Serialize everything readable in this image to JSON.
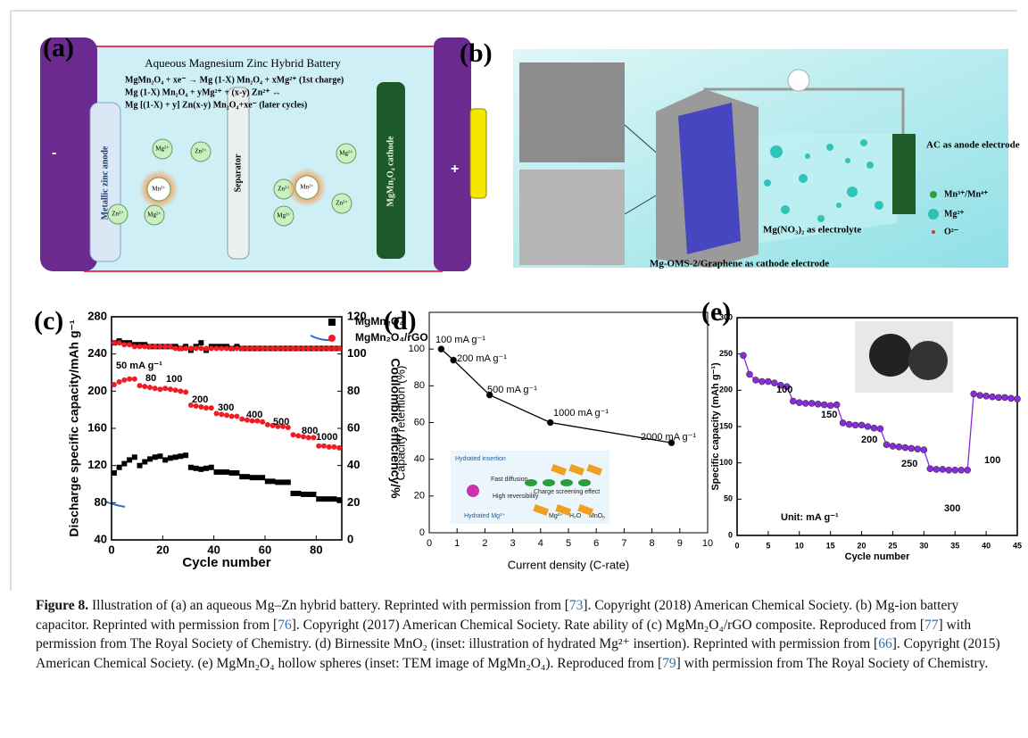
{
  "figure": {
    "panel_a": {
      "label": "(a)",
      "title": "Aqueous Magnesium Zinc Hybrid Battery",
      "equations": [
        "MgMn₂O₄ + xe⁻ → Mg (1-X) Mn₂O₄ + xMg²⁺ (1st charge)",
        "Mg (1-X) Mn₂O₄ + yMg²⁺ + (x-y) Zn²⁺ ↔",
        "Mg [(1-X) + y] Zn(x-y) Mn₂O₄+xe⁻ (later cycles)"
      ],
      "minus": "-",
      "plus": "+",
      "anode": "Metallic zinc anode",
      "separator": "Separator",
      "cathode": "MgMn₂O₄ cathode",
      "ions": [
        "Mg²⁺",
        "Zn²⁺",
        "Mn²⁺",
        "Zn²⁺",
        "Mg²⁺",
        "Zn²⁺",
        "Mn²⁺",
        "Mg²⁺",
        "Zn²⁺",
        "Mg²⁺"
      ]
    },
    "panel_b": {
      "label": "(b)",
      "anode": "AC as anode electrode",
      "legend": [
        "Mn³⁺/Mn⁴⁺",
        "Mg²⁺",
        "O²⁻"
      ],
      "electrolyte": "Mg(NO₃)₂ as electrolyte",
      "cathode": "Mg-OMS-2/Graphene as cathode electrode"
    }
  },
  "chart_data": [
    {
      "type": "scatter",
      "panel_label": "(c)",
      "x_label": "Cycle number",
      "y_label": "Discharge specific capacity/mAh g⁻¹",
      "y2_label": "Coulombic efficiency/%",
      "x": [
        1,
        3,
        5,
        7,
        9,
        11,
        13,
        15,
        17,
        19,
        21,
        23,
        25,
        27,
        29,
        31,
        33,
        35,
        37,
        39,
        41,
        43,
        45,
        47,
        49,
        51,
        53,
        55,
        57,
        59,
        61,
        63,
        65,
        67,
        69,
        71,
        73,
        75,
        77,
        79,
        81,
        83,
        85,
        87,
        89
      ],
      "series": [
        {
          "name": "MgMn₂O₄",
          "color": "#000000",
          "marker": "square",
          "values": [
            112,
            118,
            122,
            126,
            129,
            120,
            124,
            127,
            129,
            130,
            126,
            128,
            129,
            130,
            131,
            118,
            117,
            116,
            117,
            118,
            113,
            113,
            113,
            112,
            112,
            108,
            108,
            107,
            107,
            107,
            103,
            103,
            102,
            102,
            102,
            90,
            90,
            89,
            89,
            89,
            84,
            84,
            84,
            84,
            83
          ],
          "efficiency": [
            106,
            107,
            106,
            106,
            105,
            105,
            105,
            104,
            104,
            104,
            104,
            104,
            104,
            103,
            104,
            102,
            104,
            106,
            102,
            104,
            104,
            104,
            104,
            103,
            104,
            103,
            103,
            103,
            103,
            103,
            103,
            103,
            103,
            103,
            103,
            103,
            103,
            103,
            103,
            103,
            103,
            103,
            103,
            103,
            103
          ]
        },
        {
          "name": "MgMn₂O₄/rGO",
          "color": "#ee1c24",
          "marker": "circle",
          "values": [
            207,
            210,
            212,
            213,
            213,
            206,
            205,
            204,
            203,
            202,
            203,
            202,
            201,
            200,
            199,
            185,
            184,
            183,
            182,
            182,
            176,
            175,
            174,
            173,
            173,
            170,
            169,
            168,
            168,
            167,
            164,
            163,
            162,
            162,
            161,
            153,
            152,
            151,
            150,
            150,
            141,
            141,
            140,
            140,
            139
          ],
          "efficiency": [
            106,
            106,
            105,
            105,
            104,
            104,
            104,
            104,
            104,
            104,
            104,
            104,
            103,
            103,
            103,
            103,
            103,
            103,
            103,
            103,
            103,
            103,
            103,
            103,
            103,
            103,
            103,
            103,
            103,
            103,
            103,
            103,
            103,
            103,
            103,
            103,
            103,
            103,
            103,
            103,
            103,
            103,
            103,
            103,
            103
          ]
        }
      ],
      "annotations": [
        "50 mA g⁻¹",
        "80",
        "100",
        "200",
        "300",
        "400",
        "500",
        "800",
        "1000"
      ],
      "xlim": [
        0,
        90
      ],
      "xticks": [
        0,
        20,
        40,
        60,
        80
      ],
      "ylim": [
        40,
        280
      ],
      "yticks": [
        40,
        80,
        120,
        160,
        200,
        240,
        280
      ],
      "y2lim": [
        0,
        120
      ],
      "y2ticks": [
        0,
        20,
        40,
        60,
        80,
        100,
        120
      ]
    },
    {
      "type": "line",
      "panel_label": "(d)",
      "x_label": "Current density (C-rate)",
      "y_label": "Capacity retention (%)",
      "color": "#000000",
      "x": [
        0.43,
        0.87,
        2.17,
        4.35,
        8.7
      ],
      "values": [
        100,
        94,
        75,
        60,
        49
      ],
      "point_labels": [
        "100 mA g⁻¹",
        "200 mA g⁻¹",
        "500 mA g⁻¹",
        "1000 mA g⁻¹",
        "2000 mA g⁻¹"
      ],
      "inset": [
        "Hydrated insertion",
        "Fast diffusion",
        "Charge screening effect",
        "High reversibility",
        "Hydrated Mg²⁺",
        "Mg²⁺",
        "H₂O",
        "MnO₆"
      ],
      "xlim": [
        0,
        10
      ],
      "xticks": [
        0,
        1,
        2,
        3,
        4,
        5,
        6,
        7,
        8,
        9,
        10
      ],
      "ylim": [
        0,
        120
      ],
      "yticks": [
        0,
        20,
        40,
        60,
        80,
        100
      ]
    },
    {
      "type": "line",
      "panel_label": "(e)",
      "x_label": "Cycle number",
      "y_label": "Specific capacity (mAh g⁻¹)",
      "color": "#8a2be2",
      "x": [
        1,
        2,
        3,
        4,
        5,
        6,
        7,
        8,
        9,
        10,
        11,
        12,
        13,
        14,
        15,
        16,
        17,
        18,
        19,
        20,
        21,
        22,
        23,
        24,
        25,
        26,
        27,
        28,
        29,
        30,
        31,
        32,
        33,
        34,
        35,
        36,
        37,
        38,
        39,
        40,
        41,
        42,
        43,
        44,
        45
      ],
      "values": [
        248,
        222,
        214,
        212,
        212,
        210,
        207,
        205,
        185,
        183,
        182,
        182,
        181,
        180,
        179,
        180,
        155,
        153,
        152,
        152,
        150,
        148,
        147,
        125,
        123,
        122,
        121,
        120,
        119,
        118,
        92,
        91,
        91,
        90,
        90,
        90,
        90,
        195,
        193,
        192,
        191,
        190,
        190,
        189,
        188
      ],
      "annotations": [
        "100",
        "150",
        "200",
        "250",
        "300",
        "100",
        "Unit: mA g⁻¹"
      ],
      "xlim": [
        0,
        45
      ],
      "xticks": [
        0,
        5,
        10,
        15,
        20,
        25,
        30,
        35,
        40,
        45
      ],
      "ylim": [
        0,
        300
      ],
      "yticks": [
        0,
        50,
        100,
        150,
        200,
        250,
        300
      ]
    }
  ],
  "caption": {
    "label": "Figure 8.",
    "runs": [
      "Illustration of (a) an aqueous Mg–Zn hybrid battery. Reprinted with permission from [",
      "73",
      "]. Copyright (2018) American Chemical Society. (b) Mg-ion battery capacitor. Reprinted with permission from [",
      "76",
      "]. Copyright (2017) American Chemical Society. Rate ability of (c) MgMn₂O₄/rGO composite. Reproduced from [",
      "77",
      "] with permission from The Royal Society of Chemistry. (d) Birnessite MnO₂ (inset: illustration of hydrated Mg²⁺ insertion). Reprinted with permission from [",
      "66",
      "]. Copyright (2015) American Chemical Society. (e) MgMn₂O₄ hollow spheres (inset: TEM image of MgMn₂O₄). Reproduced from [",
      "79",
      "] with permission from The Royal Society of Chemistry."
    ]
  }
}
